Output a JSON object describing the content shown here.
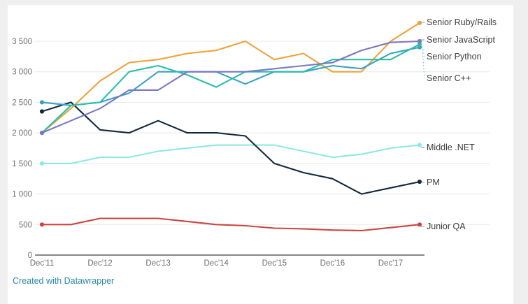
{
  "chart_data": {
    "type": "line",
    "title": "",
    "x_axis": {
      "tick_labels": [
        "Dec'11",
        "Dec'12",
        "Dec'13",
        "Dec'14",
        "Dec'15",
        "Dec'16",
        "Dec'17"
      ],
      "points_are": "half-year intervals starting Dec 2011, 14 points per series"
    },
    "y_axis": {
      "ticks": [
        0,
        500,
        1000,
        1500,
        2000,
        2500,
        3000,
        3500
      ],
      "tick_labels": [
        "0",
        "500",
        "1 000",
        "1 500",
        "2 000",
        "2 500",
        "3 000",
        "3 500"
      ],
      "range": [
        0,
        3900
      ]
    },
    "grid": true,
    "legend_position": "labels at right end of lines",
    "series": [
      {
        "name": "Junior QA",
        "color": "#cb4540",
        "label_y": 324,
        "values": [
          500,
          500,
          600,
          600,
          600,
          550,
          500,
          480,
          440,
          430,
          410,
          400,
          450,
          500
        ]
      },
      {
        "name": "Middle .NET",
        "color": "#8de9e2",
        "label_y": 211,
        "values": [
          1500,
          1500,
          1600,
          1600,
          1700,
          1750,
          1800,
          1800,
          1800,
          1700,
          1600,
          1650,
          1750,
          1800
        ]
      },
      {
        "name": "PM",
        "color": "#12293e",
        "label_y": 261,
        "values": [
          2350,
          2500,
          2050,
          2000,
          2200,
          2000,
          2000,
          1950,
          1500,
          1350,
          1250,
          1000,
          1100,
          1200
        ]
      },
      {
        "name": "Senior Ruby/Rails",
        "color": "#eda33b",
        "label_y": 32,
        "values": [
          2000,
          2400,
          2850,
          3150,
          3200,
          3300,
          3350,
          3500,
          3200,
          3300,
          3000,
          3000,
          3500,
          3800
        ]
      },
      {
        "name": "Senior C++",
        "color": "#3aa0c6",
        "label_y": 112,
        "values": [
          2500,
          2450,
          2500,
          2650,
          3000,
          3000,
          3000,
          2800,
          3000,
          3000,
          3100,
          3050,
          3300,
          3400
        ]
      },
      {
        "name": "Senior Python",
        "color": "#2bbfa6",
        "label_y": 81,
        "values": [
          2000,
          2450,
          2500,
          3000,
          3100,
          2950,
          2750,
          3000,
          3000,
          3000,
          3200,
          3200,
          3200,
          3450
        ]
      },
      {
        "name": "Senior JavaScript",
        "color": "#7d77c5",
        "label_y": 57,
        "values": [
          2000,
          2200,
          2400,
          2700,
          2700,
          3000,
          3000,
          3000,
          3050,
          3100,
          3150,
          3350,
          3480,
          3500
        ]
      }
    ]
  },
  "attribution": {
    "text": "Created with Datawrapper"
  },
  "colors": {
    "gridline": "#e8e8e8",
    "axis_line": "#111111",
    "tick_label": "#6e6e6e",
    "series_label": "#3d3d3d",
    "page_margin": "#efefef",
    "credit_link": "#2b89a7"
  }
}
